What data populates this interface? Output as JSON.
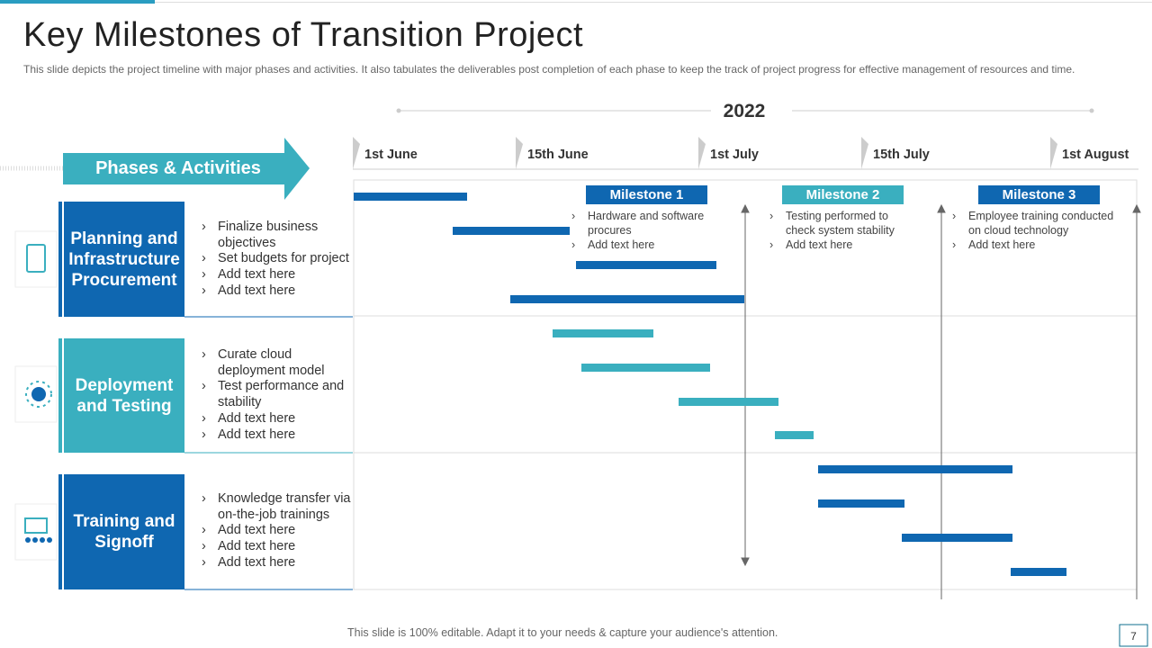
{
  "header": {
    "title": "Key Milestones of Transition Project",
    "subtitle": "This slide depicts the project timeline with major phases and activities. It also tabulates the deliverables  post completion of each phase to keep the track of project progress for effective  management of resources and time."
  },
  "timeline": {
    "year": "2022",
    "dates": [
      "1st June",
      "15th June",
      "1st July",
      "15th July",
      "1st August"
    ]
  },
  "phases_header": "Phases & Activities",
  "phases": [
    {
      "name": "Planning and Infrastructure Procurement",
      "activities": [
        "Finalize business objectives",
        "Set budgets for project",
        "Add text here",
        "Add text here"
      ]
    },
    {
      "name": "Deployment and Testing",
      "activities": [
        "Curate cloud deployment model",
        "Test performance and stability",
        "Add text here",
        "Add text here"
      ]
    },
    {
      "name": "Training and Signoff",
      "activities": [
        "Knowledge transfer via on-the-job trainings",
        "Add text here",
        "Add text here",
        "Add text here"
      ]
    }
  ],
  "milestones": [
    {
      "title": "Milestone 1",
      "items": [
        "Hardware and software procures",
        "Add text here"
      ]
    },
    {
      "title": "Milestone 2",
      "items": [
        "Testing performed to check system stability",
        "Add text here"
      ]
    },
    {
      "title": "Milestone 3",
      "items": [
        "Employee training conducted on cloud technology",
        "Add text here"
      ]
    }
  ],
  "footer": {
    "note": "This slide is 100% editable. Adapt it to your needs & capture your audience's attention.",
    "page": "7"
  }
}
